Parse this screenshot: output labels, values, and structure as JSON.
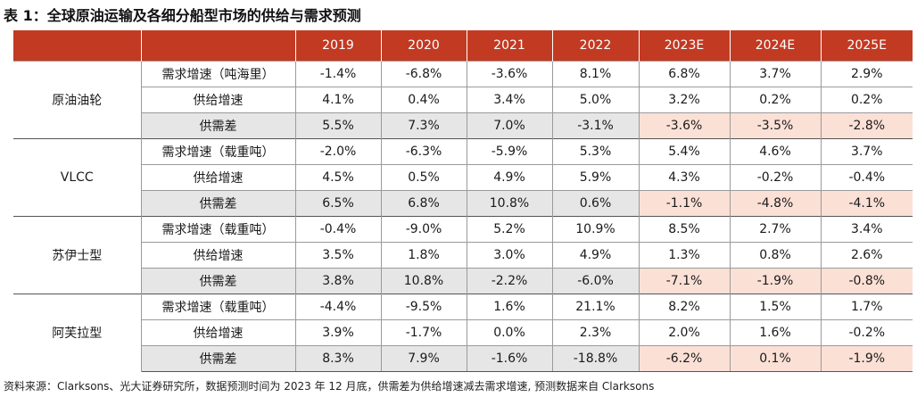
{
  "title": "表 1：全球原油运输及各细分船型市场的供给与需求预测",
  "headers": [
    "",
    "",
    "2019",
    "2020",
    "2021",
    "2022",
    "2023E",
    "2024E",
    "2025E"
  ],
  "groups": [
    {
      "name": "原油油轮",
      "rows": [
        {
          "metric": "需求增速（吨海里）",
          "values": [
            "-1.4%",
            "-6.8%",
            "-3.6%",
            "8.1%",
            "6.8%",
            "3.7%",
            "2.9%"
          ]
        },
        {
          "metric": "供给增速",
          "values": [
            "4.1%",
            "0.4%",
            "3.4%",
            "5.0%",
            "3.2%",
            "0.2%",
            "0.2%"
          ]
        },
        {
          "metric": "供需差",
          "values": [
            "5.5%",
            "7.3%",
            "7.0%",
            "-3.1%",
            "-3.6%",
            "-3.5%",
            "-2.8%"
          ]
        }
      ]
    },
    {
      "name": "VLCC",
      "rows": [
        {
          "metric": "需求增速（载重吨）",
          "values": [
            "-2.0%",
            "-6.3%",
            "-5.9%",
            "5.3%",
            "5.4%",
            "4.6%",
            "3.7%"
          ]
        },
        {
          "metric": "供给增速",
          "values": [
            "4.5%",
            "0.5%",
            "4.9%",
            "5.9%",
            "4.3%",
            "-0.2%",
            "-0.4%"
          ]
        },
        {
          "metric": "供需差",
          "values": [
            "6.5%",
            "6.8%",
            "10.8%",
            "0.6%",
            "-1.1%",
            "-4.8%",
            "-4.1%"
          ]
        }
      ]
    },
    {
      "name": "苏伊士型",
      "rows": [
        {
          "metric": "需求增速（载重吨）",
          "values": [
            "-0.4%",
            "-9.0%",
            "5.2%",
            "10.9%",
            "8.5%",
            "2.7%",
            "3.4%"
          ]
        },
        {
          "metric": "供给增速",
          "values": [
            "3.5%",
            "1.8%",
            "3.0%",
            "4.9%",
            "1.3%",
            "0.8%",
            "2.6%"
          ]
        },
        {
          "metric": "供需差",
          "values": [
            "3.8%",
            "10.8%",
            "-2.2%",
            "-6.0%",
            "-7.1%",
            "-1.9%",
            "-0.8%"
          ]
        }
      ]
    },
    {
      "name": "阿芙拉型",
      "rows": [
        {
          "metric": "需求增速（载重吨）",
          "values": [
            "-4.4%",
            "-9.5%",
            "1.6%",
            "21.1%",
            "8.2%",
            "1.5%",
            "1.7%"
          ]
        },
        {
          "metric": "供给增速",
          "values": [
            "3.9%",
            "-1.7%",
            "0.0%",
            "2.3%",
            "2.0%",
            "1.6%",
            "-0.2%"
          ]
        },
        {
          "metric": "供需差",
          "values": [
            "8.3%",
            "7.9%",
            "-1.6%",
            "-18.8%",
            "-6.2%",
            "0.1%",
            "-1.9%"
          ]
        }
      ]
    }
  ],
  "source": "资料来源：Clarksons、光大证券研究所，数据预测时间为 2023 年 12 月底，供需差为供给增速减去需求增速, 预测数据来自 Clarksons",
  "colors": {
    "header_bg": "#c23a22",
    "gap_row_bg": "#e6e6e6",
    "estimate_gap_bg": "#fbe0d6"
  }
}
